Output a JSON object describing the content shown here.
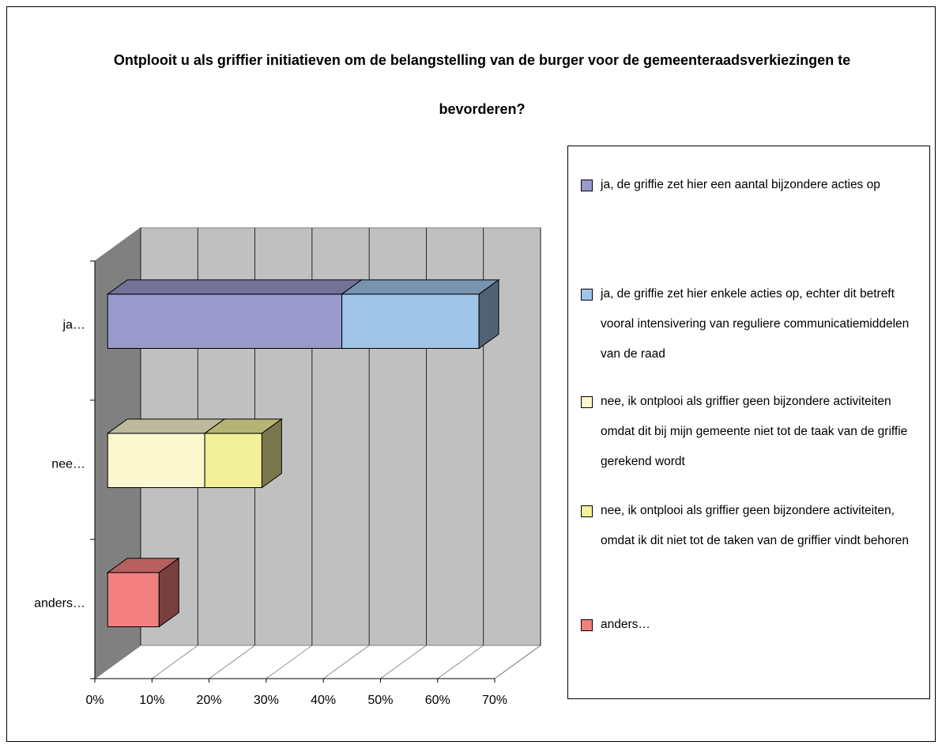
{
  "chart_data": {
    "type": "bar3d-stacked-horizontal",
    "title": "Ontplooit u als griffier initiatieven om de belangstelling van de burger voor de gemeenteraadsverkiezingen te bevorderen?",
    "categories": [
      "ja…",
      "nee…",
      "anders…"
    ],
    "series": [
      {
        "name": "ja, de griffie zet hier een aantal bijzondere acties op",
        "color": "#9999cc",
        "values": [
          41,
          null,
          null
        ]
      },
      {
        "name": "ja, de griffie zet hier enkele acties op, echter dit betreft vooral intensivering van reguliere communicatiemiddelen van de raad",
        "color": "#a0c4e8",
        "values": [
          24,
          null,
          null
        ]
      },
      {
        "name": "nee, ik ontplooi als griffier geen bijzondere activiteiten omdat dit bij mijn gemeente niet tot de taak van de griffie gerekend wordt",
        "color": "#fbf8cf",
        "values": [
          null,
          17,
          null
        ]
      },
      {
        "name": "nee, ik ontplooi als griffier geen bijzondere activiteiten, omdat ik dit niet tot de taken van de griffier vindt behoren",
        "color": "#f2f09a",
        "values": [
          null,
          10,
          null
        ]
      },
      {
        "name": "anders…",
        "color": "#f28080",
        "values": [
          null,
          null,
          9
        ]
      }
    ],
    "xlim": [
      0,
      70
    ],
    "xticks": [
      {
        "value": 0,
        "label": "0%"
      },
      {
        "value": 10,
        "label": "10%"
      },
      {
        "value": 20,
        "label": "20%"
      },
      {
        "value": 30,
        "label": "30%"
      },
      {
        "value": 40,
        "label": "40%"
      },
      {
        "value": 50,
        "label": "50%"
      },
      {
        "value": 60,
        "label": "60%"
      },
      {
        "value": 70,
        "label": "70%"
      }
    ],
    "grid": true,
    "legend": "right"
  }
}
